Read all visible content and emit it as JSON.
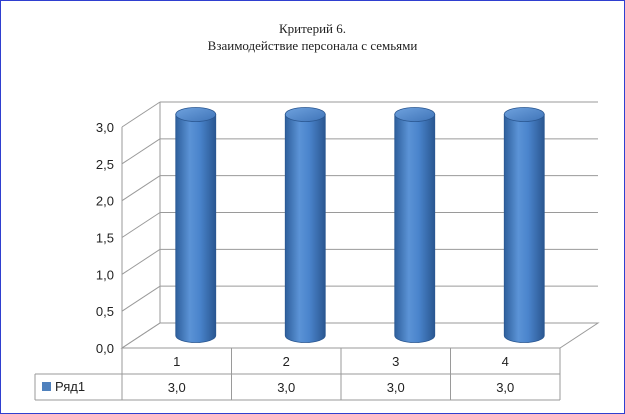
{
  "chart_data": {
    "type": "bar",
    "style": "3d-cylinder",
    "title": "Критерий 6.",
    "subtitle": "Взаимодействие персонала с семьями",
    "categories": [
      "1",
      "2",
      "3",
      "4"
    ],
    "series": [
      {
        "name": "Ряд1",
        "values": [
          3.0,
          3.0,
          3.0,
          3.0
        ],
        "labels": [
          "3,0",
          "3,0",
          "3,0",
          "3,0"
        ],
        "color": "#4f81bd"
      }
    ],
    "y_ticks": [
      "0,0",
      "0,5",
      "1,0",
      "1,5",
      "2,0",
      "2,5",
      "3,0"
    ],
    "ylim": [
      0,
      3
    ],
    "grid": true,
    "data_table": true,
    "legend": "in data table"
  }
}
